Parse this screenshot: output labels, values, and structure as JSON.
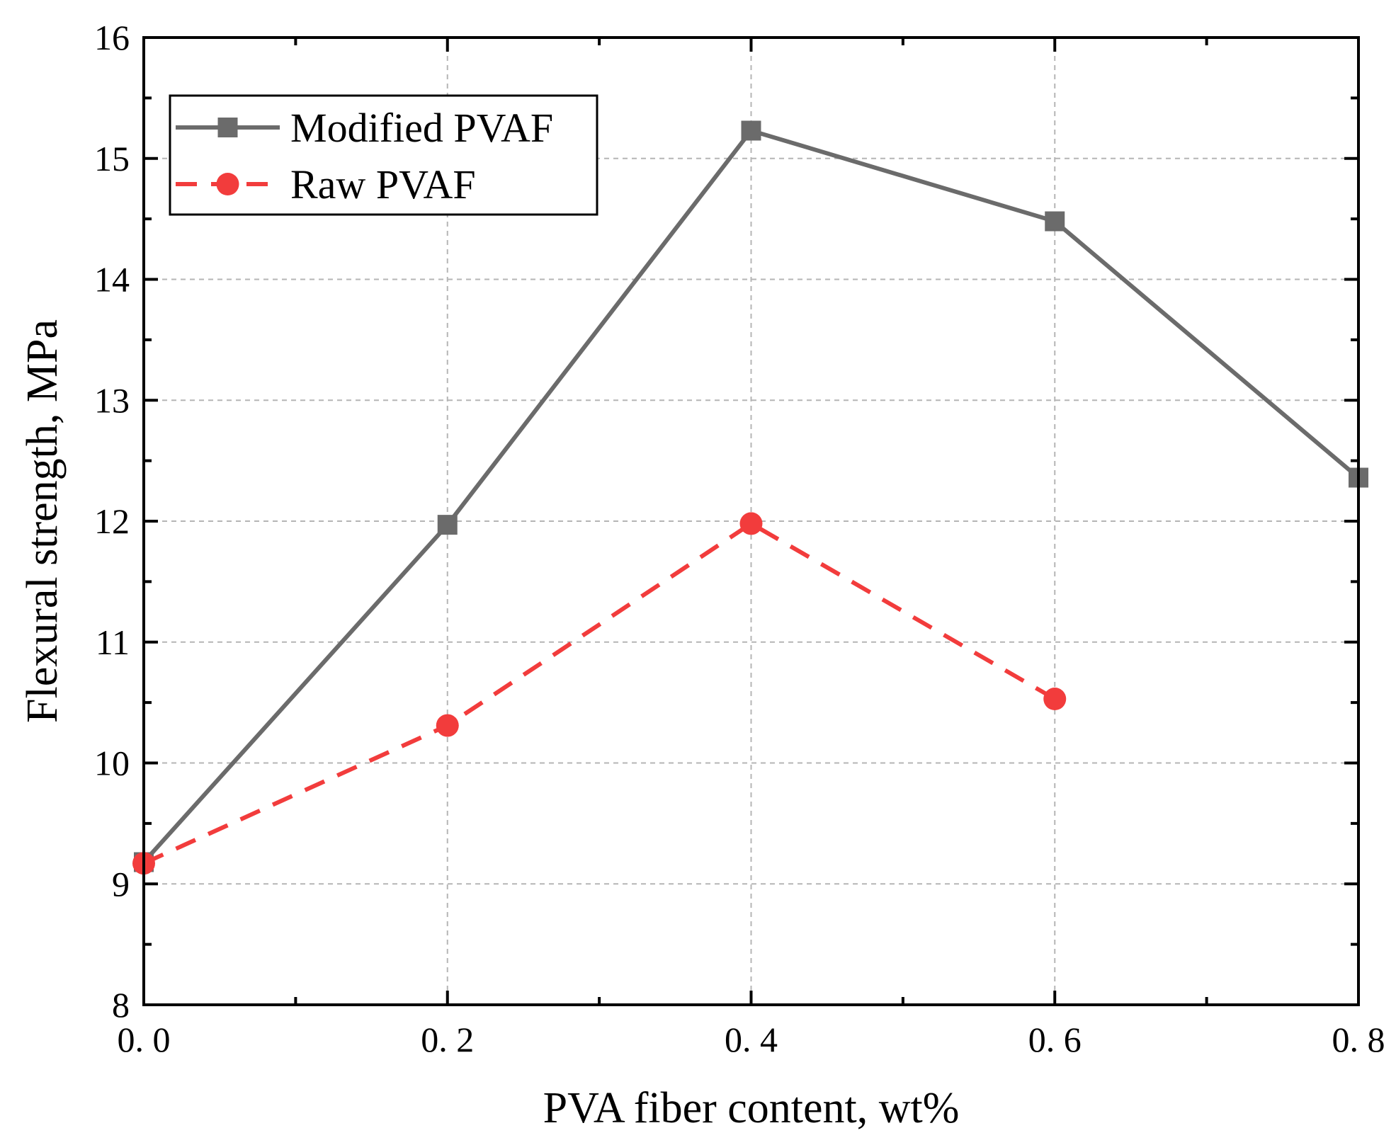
{
  "chart_data": {
    "type": "line",
    "title": "",
    "xlabel": "PVA fiber content, wt%",
    "ylabel": "Flexural strength, MPa",
    "xlim": [
      0.0,
      0.8
    ],
    "ylim": [
      8,
      16
    ],
    "x_ticks": [
      0.0,
      0.2,
      0.4,
      0.6,
      0.8
    ],
    "x_tick_labels": [
      "0. 0",
      "0. 2",
      "0. 4",
      "0. 6",
      "0. 8"
    ],
    "y_ticks": [
      8,
      9,
      10,
      11,
      12,
      13,
      14,
      15,
      16
    ],
    "y_tick_labels": [
      "8",
      "9",
      "10",
      "11",
      "12",
      "13",
      "14",
      "15",
      "16"
    ],
    "x_minor_ticks": [
      0.1,
      0.3,
      0.5,
      0.7
    ],
    "y_minor_ticks": [
      8.5,
      9.5,
      10.5,
      11.5,
      12.5,
      13.5,
      14.5,
      15.5
    ],
    "grid": true,
    "legend_position": "top-left",
    "series": [
      {
        "name": "Modified PVAF",
        "x": [
          0.0,
          0.2,
          0.4,
          0.6,
          0.8
        ],
        "values": [
          9.18,
          11.97,
          15.23,
          14.48,
          12.36
        ],
        "color": "#6b6b6b",
        "marker": "square",
        "line_style": "solid"
      },
      {
        "name": "Raw PVAF",
        "x": [
          0.0,
          0.2,
          0.4,
          0.6
        ],
        "values": [
          9.17,
          10.31,
          11.98,
          10.53
        ],
        "color": "#f23c3c",
        "marker": "circle",
        "line_style": "dashed"
      }
    ]
  }
}
